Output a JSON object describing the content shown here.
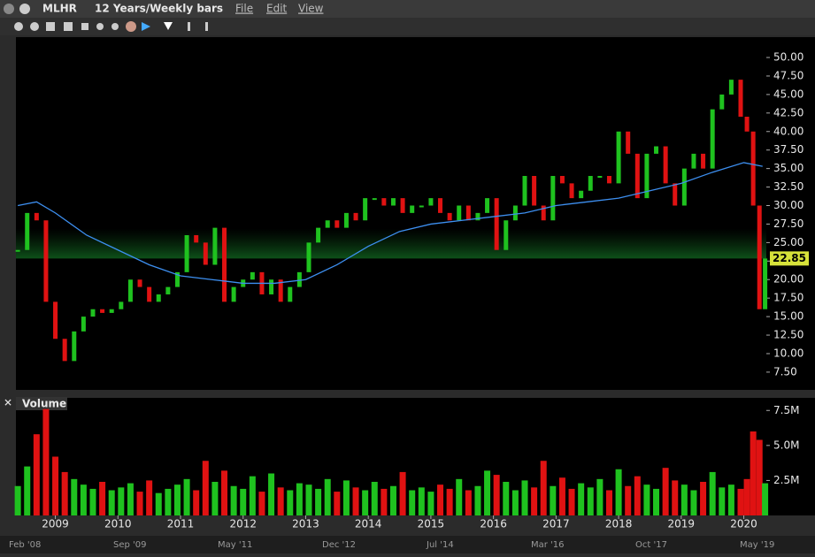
{
  "window": {
    "symbol": "MLHR",
    "timeframe": "12 Years/Weekly bars",
    "menu": [
      "File",
      "Edit",
      "View"
    ],
    "navigator_labels": [
      "Feb '08",
      "Sep '09",
      "May '11",
      "Dec '12",
      "Jul '14",
      "Mar '16",
      "Oct '17",
      "May '19"
    ]
  },
  "chart_data": [
    {
      "type": "ohlc",
      "x": [
        2008.4,
        2008.55,
        2008.7,
        2008.85,
        2009.0,
        2009.15,
        2009.3,
        2009.45,
        2009.6,
        2009.75,
        2009.9,
        2010.05,
        2010.2,
        2010.35,
        2010.5,
        2010.65,
        2010.8,
        2010.95,
        2011.1,
        2011.25,
        2011.4,
        2011.55,
        2011.7,
        2011.85,
        2012.0,
        2012.15,
        2012.3,
        2012.45,
        2012.6,
        2012.75,
        2012.9,
        2013.05,
        2013.2,
        2013.35,
        2013.5,
        2013.65,
        2013.8,
        2013.95,
        2014.1,
        2014.25,
        2014.4,
        2014.55,
        2014.7,
        2014.85,
        2015.0,
        2015.15,
        2015.3,
        2015.45,
        2015.6,
        2015.75,
        2015.9,
        2016.05,
        2016.2,
        2016.35,
        2016.5,
        2016.65,
        2016.8,
        2016.95,
        2017.1,
        2017.25,
        2017.4,
        2017.55,
        2017.7,
        2017.85,
        2018.0,
        2018.15,
        2018.3,
        2018.45,
        2018.6,
        2018.75,
        2018.9,
        2019.05,
        2019.2,
        2019.35,
        2019.5,
        2019.65,
        2019.8,
        2019.95,
        2020.05,
        2020.15,
        2020.25,
        2020.34
      ],
      "close": [
        24,
        29,
        28,
        17,
        12,
        9,
        13,
        15,
        16,
        15.5,
        16,
        17,
        20,
        19,
        17,
        18,
        19,
        21,
        26,
        25,
        22,
        27,
        17,
        19,
        20,
        21,
        18,
        20,
        17,
        19,
        21,
        25,
        27,
        28,
        27,
        29,
        28,
        31,
        31,
        30,
        31,
        29,
        30,
        30,
        31,
        29,
        28,
        30,
        28,
        29,
        31,
        24,
        28,
        30,
        34,
        30,
        28,
        34,
        33,
        31,
        32,
        34,
        34,
        33,
        40,
        37,
        31,
        37,
        38,
        33,
        30,
        35,
        37,
        35,
        43,
        45,
        47,
        42,
        40,
        30,
        16,
        22.85
      ],
      "up_color": "#1fc21f",
      "down_color": "#e01212",
      "moving_average": {
        "x": [
          2008.4,
          2008.7,
          2009.0,
          2009.5,
          2010.0,
          2010.5,
          2011.0,
          2011.5,
          2012.0,
          2012.5,
          2013.0,
          2013.5,
          2014.0,
          2014.5,
          2015.0,
          2015.5,
          2016.0,
          2016.5,
          2017.0,
          2017.5,
          2018.0,
          2018.5,
          2019.0,
          2019.5,
          2020.0,
          2020.3
        ],
        "values": [
          30,
          30.5,
          29,
          26,
          24,
          22,
          20.5,
          20,
          19.5,
          19.5,
          20,
          22,
          24.5,
          26.5,
          27.5,
          28,
          28.5,
          29,
          30,
          30.5,
          31,
          32,
          33,
          34.5,
          35.8,
          35.3
        ],
        "color": "#3d8ff0"
      },
      "last_value": 22.85,
      "xlim": [
        2008.37,
        2020.36
      ],
      "xticks": [
        2009,
        2010,
        2011,
        2012,
        2013,
        2014,
        2015,
        2016,
        2017,
        2018,
        2019,
        2020
      ],
      "ylim": [
        5.1,
        52.75
      ],
      "yticks": [
        {
          "value": 7.5,
          "label": "7.50"
        },
        {
          "value": 10,
          "label": "10.00"
        },
        {
          "value": 12.5,
          "label": "12.50"
        },
        {
          "value": 15,
          "label": "15.00"
        },
        {
          "value": 17.5,
          "label": "17.50"
        },
        {
          "value": 20,
          "label": "20.00"
        },
        {
          "value": 22.5,
          "label": "22.50"
        },
        {
          "value": 25,
          "label": "25.00"
        },
        {
          "value": 27.5,
          "label": "27.50"
        },
        {
          "value": 30,
          "label": "30.00"
        },
        {
          "value": 32.5,
          "label": "32.50"
        },
        {
          "value": 35,
          "label": "35.00"
        },
        {
          "value": 37.5,
          "label": "37.50"
        },
        {
          "value": 40,
          "label": "40.00"
        },
        {
          "value": 42.5,
          "label": "42.50"
        },
        {
          "value": 45,
          "label": "45.00"
        },
        {
          "value": 47.5,
          "label": "47.50"
        },
        {
          "value": 50,
          "label": "50.00"
        }
      ]
    },
    {
      "type": "bar",
      "title": "Volume",
      "values": [
        2.1,
        3.5,
        5.8,
        7.6,
        4.2,
        3.1,
        2.6,
        2.2,
        1.9,
        2.4,
        1.8,
        2.0,
        2.3,
        1.7,
        2.5,
        1.6,
        1.9,
        2.2,
        2.6,
        1.8,
        3.9,
        2.4,
        3.2,
        2.1,
        1.9,
        2.8,
        1.7,
        3.0,
        2.0,
        1.8,
        2.3,
        2.2,
        1.9,
        2.6,
        1.7,
        2.5,
        2.0,
        1.8,
        2.4,
        1.9,
        2.1,
        3.1,
        1.8,
        2.0,
        1.7,
        2.2,
        1.9,
        2.6,
        1.8,
        2.1,
        3.2,
        2.9,
        2.4,
        1.8,
        2.5,
        2.0,
        3.9,
        2.1,
        2.7,
        1.9,
        2.3,
        2.0,
        2.6,
        1.8,
        3.3,
        2.1,
        2.8,
        2.2,
        1.9,
        3.4,
        2.5,
        2.2,
        1.8,
        2.4,
        3.1,
        2.0,
        2.2,
        1.9,
        2.6,
        6.0,
        5.4,
        2.3
      ],
      "ylim": [
        0,
        8.4
      ],
      "yticks": [
        {
          "value": 2.5,
          "label": "2.5M"
        },
        {
          "value": 5,
          "label": "5.0M"
        },
        {
          "value": 7.5,
          "label": "7.5M"
        }
      ]
    }
  ]
}
